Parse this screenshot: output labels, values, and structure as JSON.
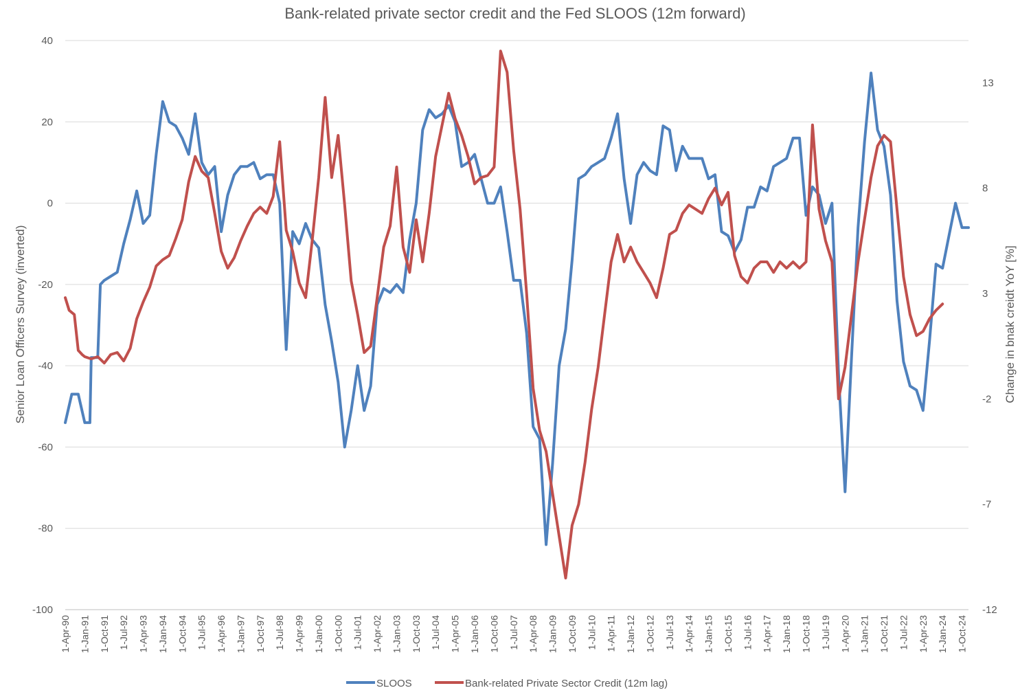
{
  "chart_data": {
    "type": "line",
    "title": "Bank-related private sector credit and the Fed SLOOS (12m forward)",
    "ylabel_left": "Senior Loan Officers Survey (inverted)",
    "ylabel_right": "Change in bnak creidt YoY [%]",
    "xlabel": "",
    "ylim_left": [
      -100,
      40
    ],
    "ylim_right": [
      -12,
      15
    ],
    "yticks_left": [
      "40",
      "20",
      "0",
      "-20",
      "-40",
      "-60",
      "-80",
      "-100"
    ],
    "yticks_right": [
      "13",
      "8",
      "3",
      "-2",
      "-7",
      "-12"
    ],
    "grid": "horizontal",
    "legend_position": "bottom",
    "x_ticks": [
      "1-Apr-90",
      "1-Jan-91",
      "1-Oct-91",
      "1-Jul-92",
      "1-Apr-93",
      "1-Jan-94",
      "1-Oct-94",
      "1-Jul-95",
      "1-Apr-96",
      "1-Jan-97",
      "1-Oct-97",
      "1-Jul-98",
      "1-Apr-99",
      "1-Jan-00",
      "1-Oct-00",
      "1-Jul-01",
      "1-Apr-02",
      "1-Jan-03",
      "1-Oct-03",
      "1-Jul-04",
      "1-Apr-05",
      "1-Jan-06",
      "1-Oct-06",
      "1-Jul-07",
      "1-Apr-08",
      "1-Jan-09",
      "1-Oct-09",
      "1-Jul-10",
      "1-Apr-11",
      "1-Jan-12",
      "1-Oct-12",
      "1-Jul-13",
      "1-Apr-14",
      "1-Jan-15",
      "1-Oct-15",
      "1-Jul-16",
      "1-Apr-17",
      "1-Jan-18",
      "1-Oct-18",
      "1-Jul-19",
      "1-Apr-20",
      "1-Jan-21",
      "1-Oct-21",
      "1-Jul-22",
      "1-Apr-23",
      "1-Jan-24",
      "1-Oct-24"
    ],
    "series": [
      {
        "name": "SLOOS",
        "axis": "left",
        "color": "#4F81BD",
        "points": [
          [
            1990.25,
            -54
          ],
          [
            1990.5,
            -47
          ],
          [
            1990.75,
            -47
          ],
          [
            1991.0,
            -54
          ],
          [
            1991.2,
            -54
          ],
          [
            1991.25,
            -38
          ],
          [
            1991.5,
            -38
          ],
          [
            1991.6,
            -20
          ],
          [
            1991.75,
            -19
          ],
          [
            1992.0,
            -18
          ],
          [
            1992.25,
            -17
          ],
          [
            1992.5,
            -10
          ],
          [
            1992.75,
            -4
          ],
          [
            1993.0,
            3
          ],
          [
            1993.25,
            -5
          ],
          [
            1993.5,
            -3
          ],
          [
            1993.75,
            12
          ],
          [
            1994.0,
            25
          ],
          [
            1994.25,
            20
          ],
          [
            1994.5,
            19
          ],
          [
            1994.75,
            16
          ],
          [
            1995.0,
            12
          ],
          [
            1995.25,
            22
          ],
          [
            1995.5,
            10
          ],
          [
            1995.75,
            7
          ],
          [
            1996.0,
            9
          ],
          [
            1996.25,
            -7
          ],
          [
            1996.5,
            2
          ],
          [
            1996.75,
            7
          ],
          [
            1997.0,
            9
          ],
          [
            1997.25,
            9
          ],
          [
            1997.5,
            10
          ],
          [
            1997.75,
            6
          ],
          [
            1998.0,
            7
          ],
          [
            1998.25,
            7
          ],
          [
            1998.5,
            0
          ],
          [
            1998.75,
            -36
          ],
          [
            1999.0,
            -7
          ],
          [
            1999.25,
            -10
          ],
          [
            1999.5,
            -5
          ],
          [
            1999.75,
            -9
          ],
          [
            2000.0,
            -11
          ],
          [
            2000.25,
            -25
          ],
          [
            2000.5,
            -34
          ],
          [
            2000.75,
            -44
          ],
          [
            2001.0,
            -60
          ],
          [
            2001.25,
            -51
          ],
          [
            2001.5,
            -40
          ],
          [
            2001.75,
            -51
          ],
          [
            2002.0,
            -45
          ],
          [
            2002.25,
            -25
          ],
          [
            2002.5,
            -21
          ],
          [
            2002.75,
            -22
          ],
          [
            2003.0,
            -20
          ],
          [
            2003.25,
            -22
          ],
          [
            2003.5,
            -9
          ],
          [
            2003.75,
            0
          ],
          [
            2004.0,
            18
          ],
          [
            2004.25,
            23
          ],
          [
            2004.5,
            21
          ],
          [
            2004.75,
            22
          ],
          [
            2005.0,
            24
          ],
          [
            2005.25,
            20
          ],
          [
            2005.5,
            9
          ],
          [
            2005.75,
            10
          ],
          [
            2006.0,
            12
          ],
          [
            2006.25,
            6
          ],
          [
            2006.5,
            0
          ],
          [
            2006.75,
            0
          ],
          [
            2007.0,
            4
          ],
          [
            2007.25,
            -7
          ],
          [
            2007.5,
            -19
          ],
          [
            2007.75,
            -19
          ],
          [
            2008.0,
            -32
          ],
          [
            2008.25,
            -55
          ],
          [
            2008.5,
            -58
          ],
          [
            2008.75,
            -84
          ],
          [
            2009.0,
            -64
          ],
          [
            2009.25,
            -40
          ],
          [
            2009.5,
            -31
          ],
          [
            2009.75,
            -14
          ],
          [
            2010.0,
            6
          ],
          [
            2010.25,
            7
          ],
          [
            2010.5,
            9
          ],
          [
            2010.75,
            10
          ],
          [
            2011.0,
            11
          ],
          [
            2011.25,
            16
          ],
          [
            2011.5,
            22
          ],
          [
            2011.75,
            6
          ],
          [
            2012.0,
            -5
          ],
          [
            2012.25,
            7
          ],
          [
            2012.5,
            10
          ],
          [
            2012.75,
            8
          ],
          [
            2013.0,
            7
          ],
          [
            2013.25,
            19
          ],
          [
            2013.5,
            18
          ],
          [
            2013.75,
            8
          ],
          [
            2014.0,
            14
          ],
          [
            2014.25,
            11
          ],
          [
            2014.5,
            11
          ],
          [
            2014.75,
            11
          ],
          [
            2015.0,
            6
          ],
          [
            2015.25,
            7
          ],
          [
            2015.5,
            -7
          ],
          [
            2015.75,
            -8
          ],
          [
            2016.0,
            -12
          ],
          [
            2016.25,
            -9
          ],
          [
            2016.5,
            -1
          ],
          [
            2016.75,
            -1
          ],
          [
            2017.0,
            4
          ],
          [
            2017.25,
            3
          ],
          [
            2017.5,
            9
          ],
          [
            2017.75,
            10
          ],
          [
            2018.0,
            11
          ],
          [
            2018.25,
            16
          ],
          [
            2018.5,
            16
          ],
          [
            2018.75,
            -3
          ],
          [
            2019.0,
            4
          ],
          [
            2019.25,
            2
          ],
          [
            2019.5,
            -5
          ],
          [
            2019.75,
            0
          ],
          [
            2020.0,
            -42
          ],
          [
            2020.25,
            -71
          ],
          [
            2020.5,
            -38
          ],
          [
            2020.75,
            -6
          ],
          [
            2021.0,
            15
          ],
          [
            2021.25,
            32
          ],
          [
            2021.5,
            18
          ],
          [
            2021.75,
            14
          ],
          [
            2022.0,
            2
          ],
          [
            2022.25,
            -24
          ],
          [
            2022.5,
            -39
          ],
          [
            2022.75,
            -45
          ],
          [
            2023.0,
            -46
          ],
          [
            2023.25,
            -51
          ],
          [
            2023.5,
            -34
          ],
          [
            2023.75,
            -15
          ],
          [
            2024.0,
            -16
          ],
          [
            2024.25,
            -8
          ],
          [
            2024.5,
            0
          ],
          [
            2024.75,
            -6
          ],
          [
            2025.0,
            -6
          ]
        ]
      },
      {
        "name": "Bank-related Private Sector Credit (12m lag)",
        "axis": "right",
        "color": "#C0504D",
        "points": [
          [
            1990.25,
            2.8
          ],
          [
            1990.4,
            2.2
          ],
          [
            1990.6,
            2.0
          ],
          [
            1990.75,
            0.3
          ],
          [
            1990.9,
            0.1
          ],
          [
            1991.0,
            0.0
          ],
          [
            1991.25,
            -0.1
          ],
          [
            1991.5,
            0.0
          ],
          [
            1991.75,
            -0.3
          ],
          [
            1992.0,
            0.1
          ],
          [
            1992.25,
            0.2
          ],
          [
            1992.5,
            -0.2
          ],
          [
            1992.75,
            0.4
          ],
          [
            1993.0,
            1.8
          ],
          [
            1993.25,
            2.6
          ],
          [
            1993.5,
            3.3
          ],
          [
            1993.75,
            4.3
          ],
          [
            1994.0,
            4.6
          ],
          [
            1994.25,
            4.8
          ],
          [
            1994.5,
            5.6
          ],
          [
            1994.75,
            6.5
          ],
          [
            1995.0,
            8.3
          ],
          [
            1995.25,
            9.5
          ],
          [
            1995.5,
            8.8
          ],
          [
            1995.75,
            8.5
          ],
          [
            1996.0,
            6.8
          ],
          [
            1996.25,
            5.0
          ],
          [
            1996.5,
            4.2
          ],
          [
            1996.75,
            4.7
          ],
          [
            1997.0,
            5.5
          ],
          [
            1997.25,
            6.2
          ],
          [
            1997.5,
            6.8
          ],
          [
            1997.75,
            7.1
          ],
          [
            1998.0,
            6.8
          ],
          [
            1998.25,
            7.6
          ],
          [
            1998.5,
            10.2
          ],
          [
            1998.75,
            6.0
          ],
          [
            1999.0,
            5.0
          ],
          [
            1999.25,
            3.5
          ],
          [
            1999.5,
            2.8
          ],
          [
            1999.75,
            5.5
          ],
          [
            2000.0,
            8.5
          ],
          [
            2000.25,
            12.3
          ],
          [
            2000.5,
            8.5
          ],
          [
            2000.75,
            10.5
          ],
          [
            2001.0,
            7.2
          ],
          [
            2001.25,
            3.6
          ],
          [
            2001.5,
            2.0
          ],
          [
            2001.75,
            0.2
          ],
          [
            2002.0,
            0.5
          ],
          [
            2002.25,
            2.8
          ],
          [
            2002.5,
            5.2
          ],
          [
            2002.75,
            6.2
          ],
          [
            2003.0,
            9.0
          ],
          [
            2003.25,
            5.2
          ],
          [
            2003.5,
            4.0
          ],
          [
            2003.75,
            6.5
          ],
          [
            2004.0,
            4.5
          ],
          [
            2004.25,
            6.8
          ],
          [
            2004.5,
            9.5
          ],
          [
            2004.75,
            11.0
          ],
          [
            2005.0,
            12.5
          ],
          [
            2005.25,
            11.3
          ],
          [
            2005.5,
            10.5
          ],
          [
            2005.75,
            9.5
          ],
          [
            2006.0,
            8.2
          ],
          [
            2006.25,
            8.5
          ],
          [
            2006.5,
            8.6
          ],
          [
            2006.75,
            9.0
          ],
          [
            2007.0,
            14.5
          ],
          [
            2007.25,
            13.5
          ],
          [
            2007.5,
            9.8
          ],
          [
            2007.75,
            7.0
          ],
          [
            2008.0,
            3.0
          ],
          [
            2008.25,
            -1.5
          ],
          [
            2008.5,
            -3.5
          ],
          [
            2008.75,
            -4.5
          ],
          [
            2009.0,
            -6.5
          ],
          [
            2009.25,
            -8.5
          ],
          [
            2009.5,
            -10.5
          ],
          [
            2009.75,
            -8.0
          ],
          [
            2010.0,
            -7.0
          ],
          [
            2010.25,
            -5.0
          ],
          [
            2010.5,
            -2.5
          ],
          [
            2010.75,
            -0.5
          ],
          [
            2011.0,
            2.0
          ],
          [
            2011.25,
            4.5
          ],
          [
            2011.5,
            5.8
          ],
          [
            2011.75,
            4.5
          ],
          [
            2012.0,
            5.2
          ],
          [
            2012.25,
            4.5
          ],
          [
            2012.5,
            4.0
          ],
          [
            2012.75,
            3.5
          ],
          [
            2013.0,
            2.8
          ],
          [
            2013.25,
            4.2
          ],
          [
            2013.5,
            5.8
          ],
          [
            2013.75,
            6.0
          ],
          [
            2014.0,
            6.8
          ],
          [
            2014.25,
            7.2
          ],
          [
            2014.5,
            7.0
          ],
          [
            2014.75,
            6.8
          ],
          [
            2015.0,
            7.5
          ],
          [
            2015.25,
            8.0
          ],
          [
            2015.5,
            7.2
          ],
          [
            2015.75,
            7.8
          ],
          [
            2016.0,
            4.8
          ],
          [
            2016.25,
            3.8
          ],
          [
            2016.5,
            3.5
          ],
          [
            2016.75,
            4.2
          ],
          [
            2017.0,
            4.5
          ],
          [
            2017.25,
            4.5
          ],
          [
            2017.5,
            4.0
          ],
          [
            2017.75,
            4.5
          ],
          [
            2018.0,
            4.2
          ],
          [
            2018.25,
            4.5
          ],
          [
            2018.5,
            4.2
          ],
          [
            2018.75,
            4.5
          ],
          [
            2019.0,
            11.0
          ],
          [
            2019.25,
            7.0
          ],
          [
            2019.5,
            5.5
          ],
          [
            2019.75,
            4.5
          ],
          [
            2020.0,
            -2.0
          ],
          [
            2020.25,
            -0.5
          ],
          [
            2020.5,
            2.0
          ],
          [
            2020.75,
            4.5
          ],
          [
            2021.0,
            6.5
          ],
          [
            2021.25,
            8.5
          ],
          [
            2021.5,
            10.0
          ],
          [
            2021.75,
            10.5
          ],
          [
            2022.0,
            10.2
          ],
          [
            2022.25,
            7.0
          ],
          [
            2022.5,
            3.8
          ],
          [
            2022.75,
            2.0
          ],
          [
            2023.0,
            1.0
          ],
          [
            2023.25,
            1.2
          ],
          [
            2023.5,
            1.8
          ],
          [
            2023.75,
            2.2
          ],
          [
            2024.0,
            2.5
          ]
        ]
      }
    ]
  },
  "legend": {
    "items": [
      {
        "label": "SLOOS",
        "color": "#4F81BD"
      },
      {
        "label": "Bank-related Private Sector Credit (12m lag)",
        "color": "#C0504D"
      }
    ]
  }
}
